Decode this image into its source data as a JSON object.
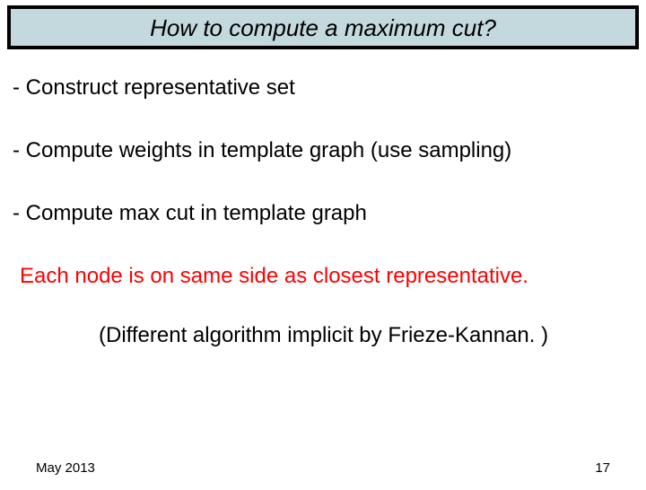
{
  "title": "How to compute a maximum cut?",
  "bullets": [
    "- Construct representative set",
    "- Compute weights in template graph (use sampling)",
    "- Compute max cut in template graph"
  ],
  "highlight": "Each node is on same side as closest representative.",
  "note": "(Different algorithm implicit by Frieze-Kannan. )",
  "footer": {
    "date": "May 2013",
    "page": "17"
  },
  "colors": {
    "title_bg": "#c3d9de",
    "title_border": "#000000",
    "body_text": "#000000",
    "highlight_text": "#fe0000",
    "background": "#ffffff"
  },
  "fonts": {
    "title_size": 26,
    "title_style": "italic",
    "body_size": 24,
    "footer_size": 15
  }
}
